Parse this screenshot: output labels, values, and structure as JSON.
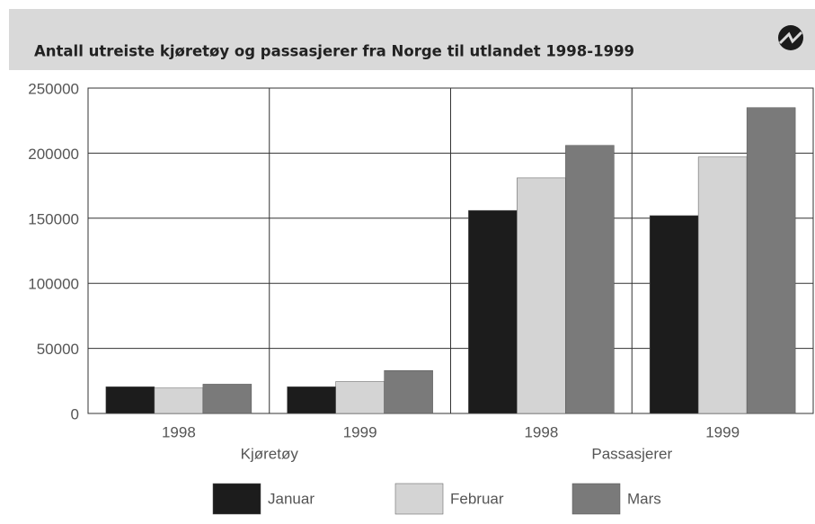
{
  "chart_data": {
    "type": "bar",
    "title": "Antall utreiste kjøretøy og passasjerer fra Norge til utlandet 1998-1999",
    "categories": [
      "1998",
      "1999",
      "1998",
      "1999"
    ],
    "category_groups": [
      "Kjøretøy",
      "Passasjerer"
    ],
    "series": [
      {
        "name": "Januar",
        "color": "#1c1c1c",
        "values": [
          20500,
          20500,
          156000,
          152000
        ]
      },
      {
        "name": "Februar",
        "color": "#d4d4d4",
        "values": [
          19500,
          24500,
          181000,
          197000
        ]
      },
      {
        "name": "Mars",
        "color": "#7a7a7a",
        "values": [
          22500,
          33000,
          206000,
          235000
        ]
      }
    ],
    "ylim": [
      0,
      250000
    ],
    "yticks": [
      0,
      50000,
      100000,
      150000,
      200000,
      250000
    ],
    "grid": true,
    "legend": "bottom"
  }
}
